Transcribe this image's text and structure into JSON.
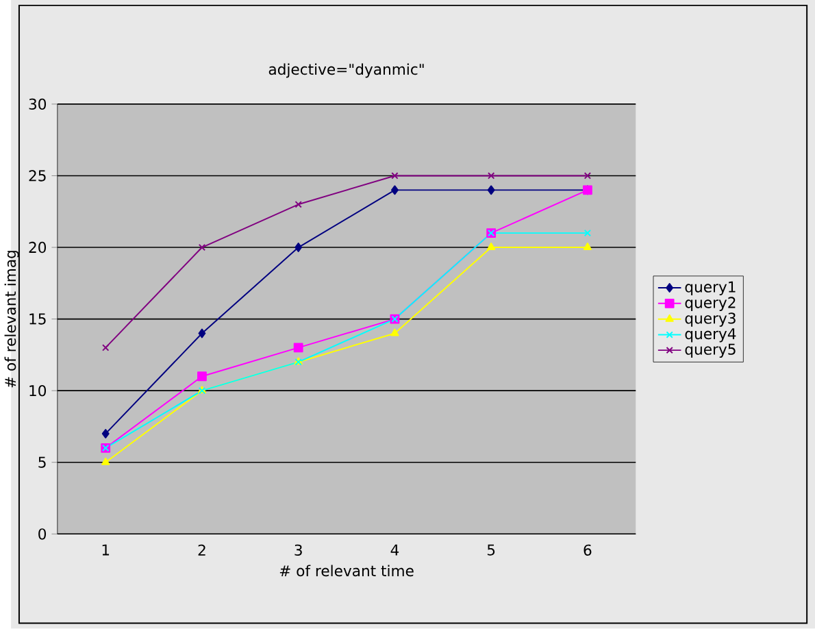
{
  "chart_data": {
    "type": "line",
    "title": "adjective=\"dyanmic\"",
    "xlabel": "# of relevant time",
    "ylabel": "# of relevant imag",
    "categories": [
      "1",
      "2",
      "3",
      "4",
      "5",
      "6"
    ],
    "series": [
      {
        "name": "query1",
        "color": "#000080",
        "marker": "diamond",
        "values": [
          7,
          14,
          20,
          24,
          24,
          24
        ]
      },
      {
        "name": "query2",
        "color": "#ff00ff",
        "marker": "square",
        "values": [
          6,
          11,
          13,
          15,
          21,
          24
        ]
      },
      {
        "name": "query3",
        "color": "#ffff00",
        "marker": "triangle",
        "values": [
          5,
          10,
          12,
          14,
          20,
          20
        ]
      },
      {
        "name": "query4",
        "color": "#00ffff",
        "marker": "cross",
        "values": [
          6,
          10,
          12,
          15,
          21,
          21
        ]
      },
      {
        "name": "query5",
        "color": "#800080",
        "marker": "cross",
        "values": [
          13,
          20,
          23,
          25,
          25,
          25
        ]
      }
    ],
    "ylim": [
      0,
      30
    ],
    "yticks": [
      0,
      5,
      10,
      15,
      20,
      25,
      30
    ],
    "grid": "y",
    "legend": "right",
    "line_style": "solid"
  }
}
